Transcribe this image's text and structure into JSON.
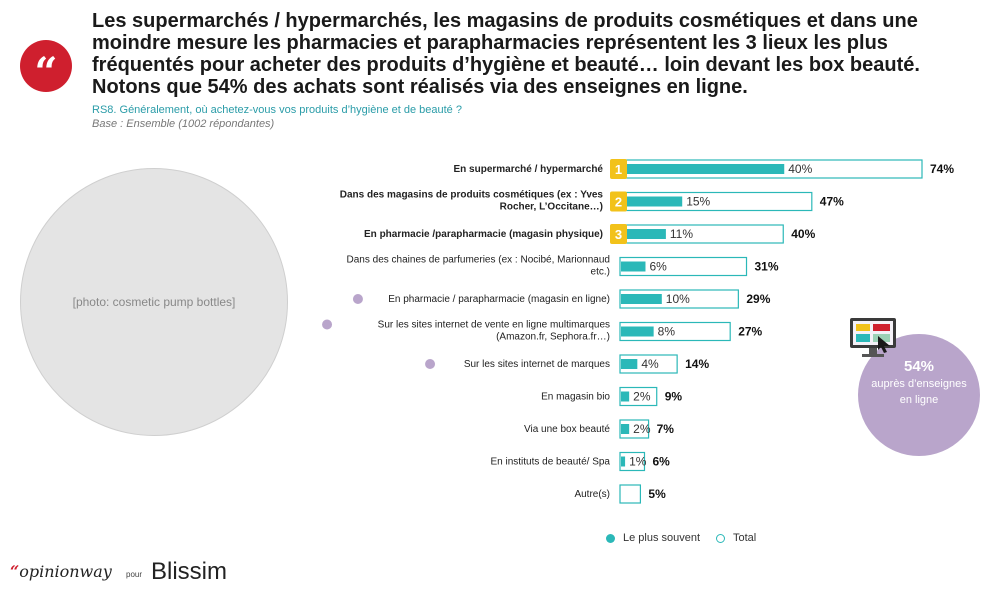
{
  "headline": "Les supermarchés / hypermarchés, les magasins de produits cosmétiques et dans une moindre mesure les pharmacies et parapharmacies représentent les 3 lieux les plus fréquentés pour acheter des produits d’hygiène et beauté… loin devant les box beauté. Notons que 54% des achats sont réalisés via des enseignes en ligne.",
  "quote_mark": "“",
  "question": "RS8. Généralement, où achetez-vous vos produits d’hygiène et de beauté ?",
  "base": "Base : Ensemble (1002 répondantes)",
  "photo_label": "[photo: cosmetic pump bottles]",
  "colors": {
    "most_often": "#2bb8b8",
    "total_outline": "#2bb8b8",
    "rank_badge": "#f2c21a",
    "online_marker": "#b9a5cb",
    "brand_red": "#cf1f2e"
  },
  "chart_data": {
    "type": "bar",
    "categories": [
      [
        "En supermarché / hypermarché"
      ],
      [
        "Dans des magasins de produits cosmétiques (ex : Yves",
        "Rocher, L’Occitane…)"
      ],
      [
        "En pharmacie /parapharmacie (magasin physique)"
      ],
      [
        "Dans des chaines de parfumeries (ex : Nocibé, Marionnaud",
        "etc.)"
      ],
      [
        "En pharmacie / parapharmacie (magasin en ligne)"
      ],
      [
        "Sur les sites internet de vente en ligne multimarques",
        "(Amazon.fr, Sephora.fr…)"
      ],
      [
        "Sur les sites internet de marques"
      ],
      [
        "En magasin bio"
      ],
      [
        "Via une box beauté"
      ],
      [
        "En instituts de beauté/ Spa"
      ],
      [
        "Autre(s)"
      ]
    ],
    "bold_rows": [
      true,
      true,
      true,
      false,
      false,
      false,
      false,
      false,
      false,
      false,
      false
    ],
    "online_rows": [
      false,
      false,
      false,
      false,
      true,
      true,
      true,
      false,
      false,
      false,
      false
    ],
    "rank_badges": [
      "1",
      "2",
      "3",
      "",
      "",
      "",
      "",
      "",
      "",
      "",
      ""
    ],
    "series": [
      {
        "name": "Le plus souvent",
        "values": [
          40,
          15,
          11,
          6,
          10,
          8,
          4,
          2,
          2,
          1,
          null
        ],
        "labels": [
          "40%",
          "15%",
          "11%",
          "6%",
          "10%",
          "8%",
          "4%",
          "2%",
          "2%",
          "1%",
          ""
        ]
      },
      {
        "name": "Total",
        "values": [
          74,
          47,
          40,
          31,
          29,
          27,
          14,
          9,
          7,
          6,
          5
        ],
        "labels": [
          "74%",
          "47%",
          "40%",
          "31%",
          "29%",
          "27%",
          "14%",
          "9%",
          "7%",
          "6%",
          "5%"
        ]
      }
    ],
    "xlim": [
      0,
      74
    ],
    "legend_position": "bottom"
  },
  "legend": {
    "most_often": "Le plus souvent",
    "total": "Total"
  },
  "online_callout": {
    "pct": "54%",
    "label_line1": "auprès d’enseignes",
    "label_line2": "en ligne"
  },
  "footer": {
    "quote": "“",
    "opinionway": "opinionway",
    "pour": "pour",
    "blissim": "Blissim"
  }
}
